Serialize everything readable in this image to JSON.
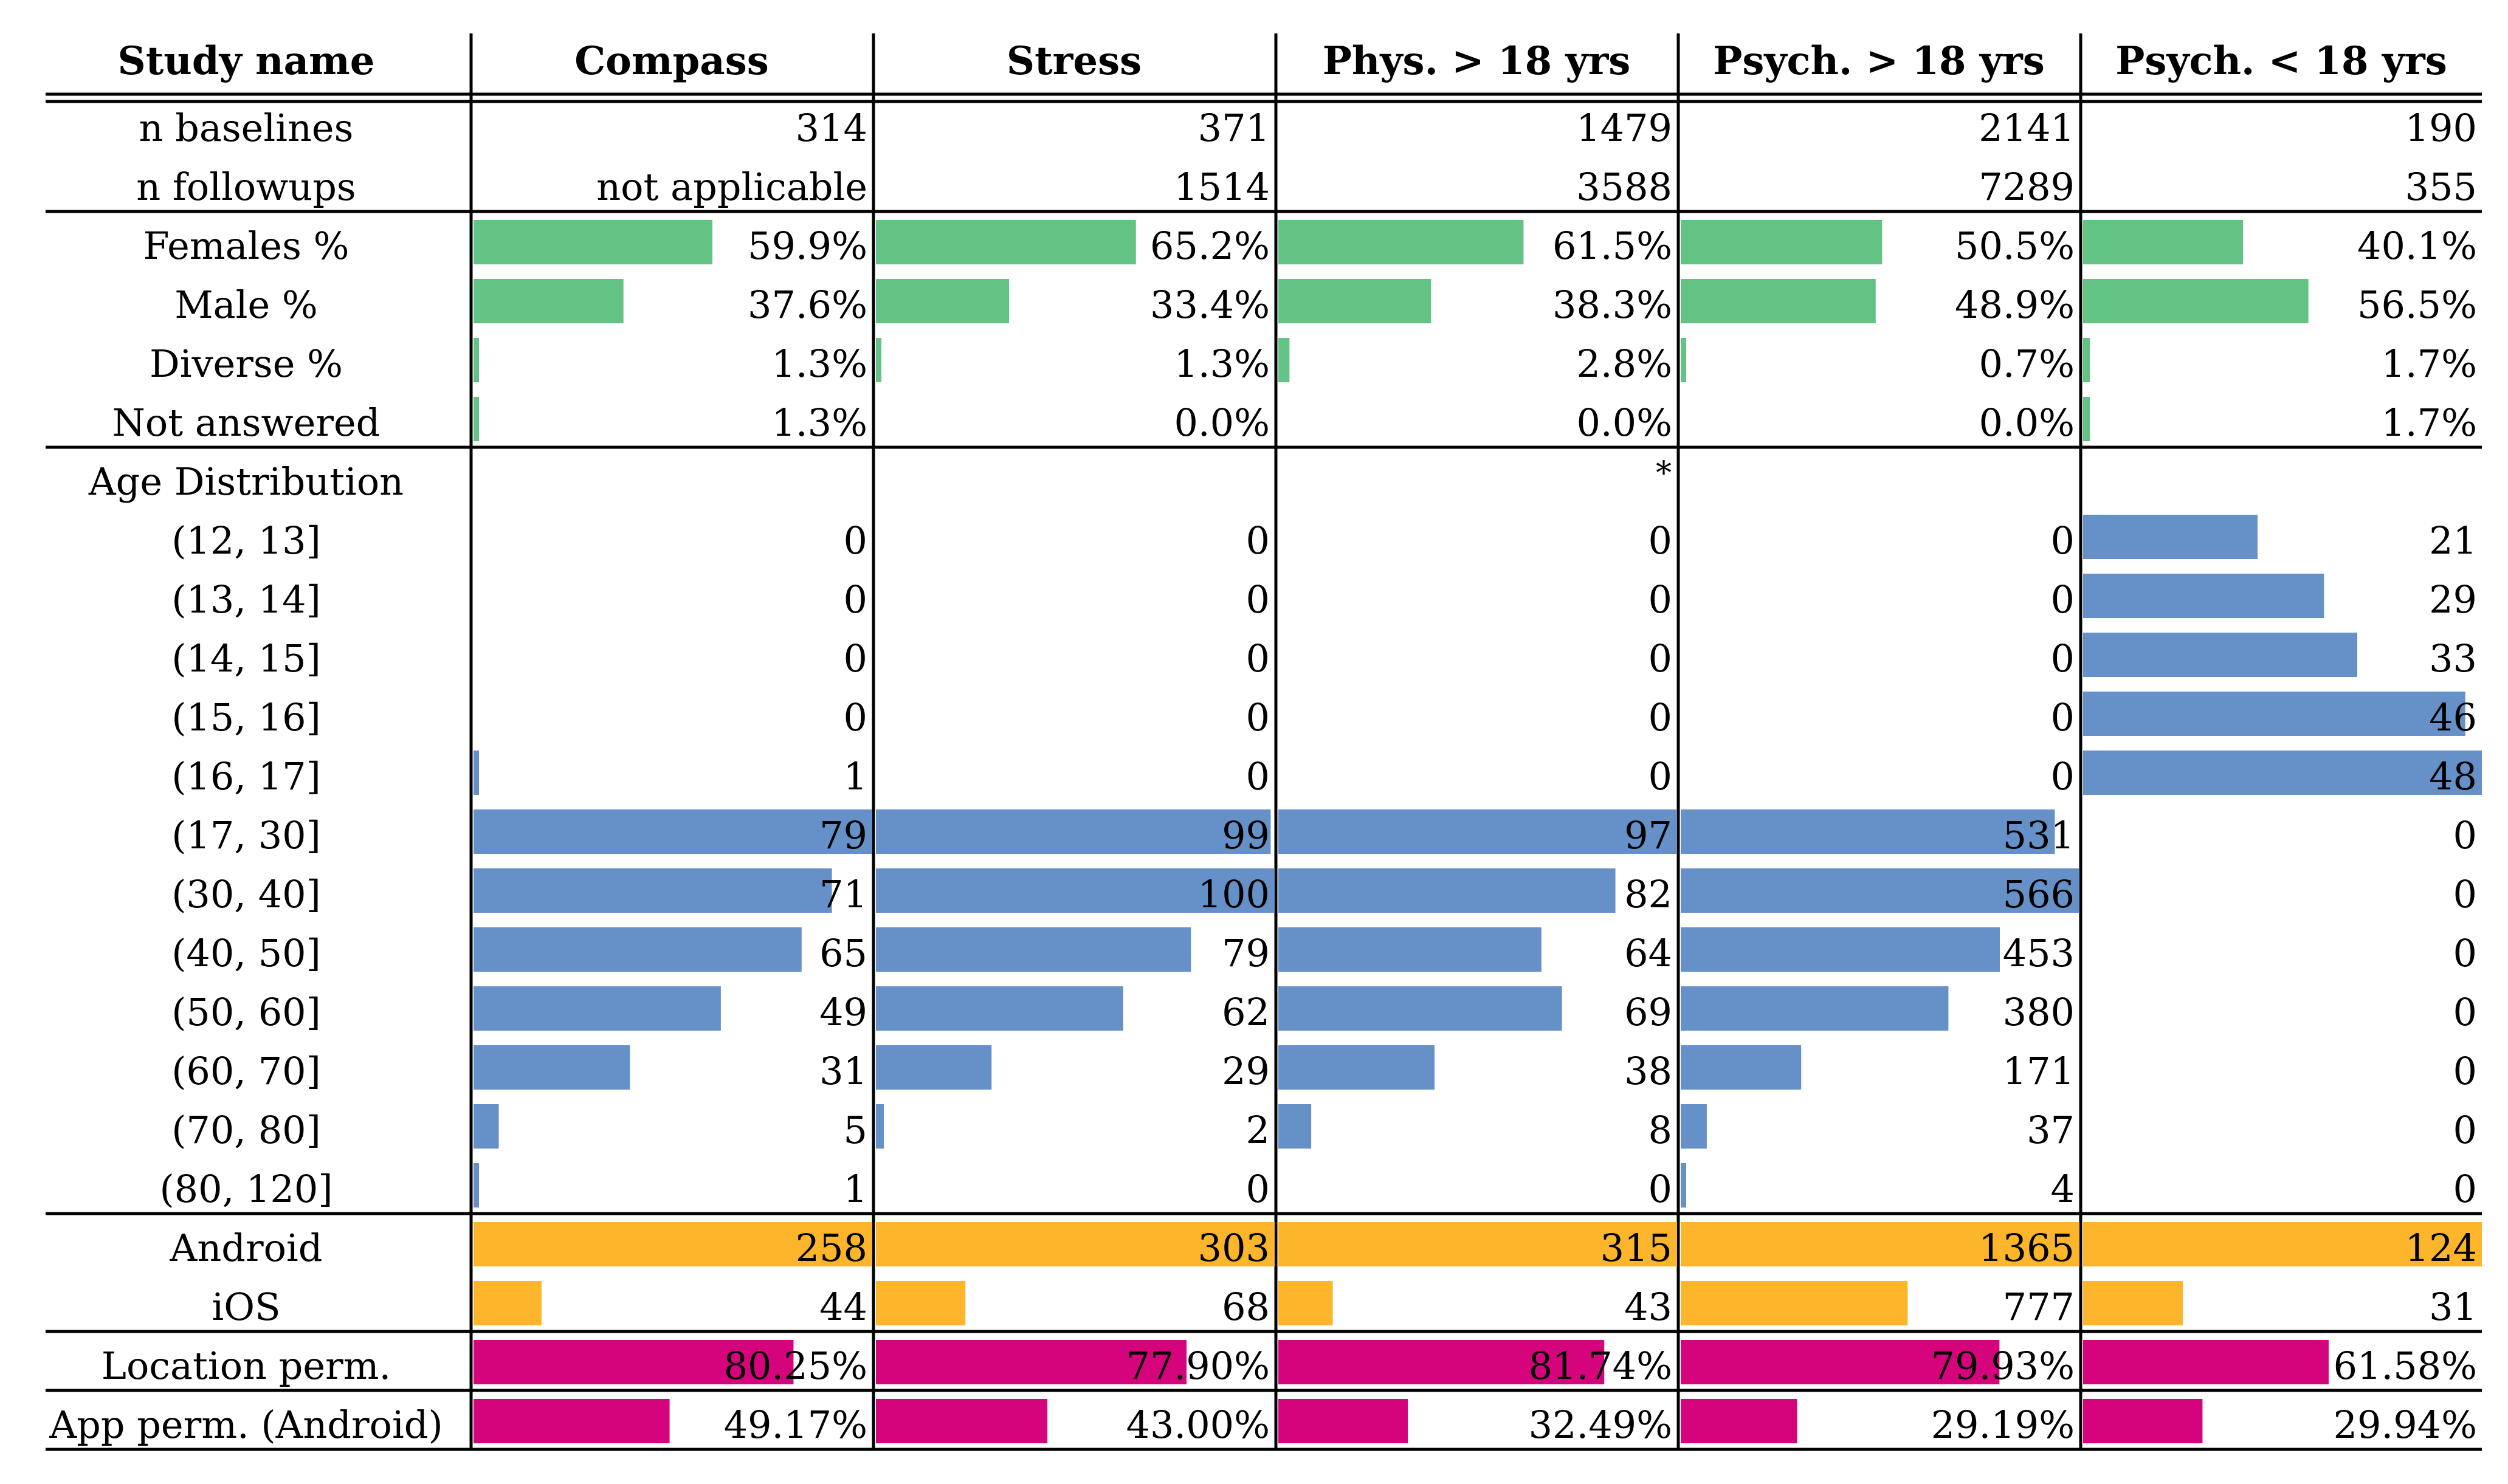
{
  "chart_data": {
    "type": "table",
    "title": "",
    "columns": [
      "Compass",
      "Stress",
      "Phys. > 18 yrs",
      "Psych. > 18 yrs",
      "Psych. < 18 yrs"
    ],
    "row_header": "Study name",
    "colors": {
      "gender": "#62c385",
      "age": "#6590c8",
      "os": "#fdb52b",
      "permissions": "#d5047d"
    },
    "sections": [
      {
        "name": "counts",
        "bars": false,
        "rows": [
          {
            "label": "n baselines",
            "values": [
              "314",
              "371",
              "1479",
              "2141",
              "190"
            ]
          },
          {
            "label": "n followups",
            "values": [
              "not applicable",
              "1514",
              "3588",
              "7289",
              "355"
            ]
          }
        ]
      },
      {
        "name": "gender",
        "bars": true,
        "color_key": "gender",
        "bar_max": 100,
        "rows": [
          {
            "label": "Females %",
            "values": [
              59.9,
              65.2,
              61.5,
              50.5,
              40.1
            ],
            "display": [
              "59.9%",
              "65.2%",
              "61.5%",
              "50.5%",
              "40.1%"
            ]
          },
          {
            "label": "Male %",
            "values": [
              37.6,
              33.4,
              38.3,
              48.9,
              56.5
            ],
            "display": [
              "37.6%",
              "33.4%",
              "38.3%",
              "48.9%",
              "56.5%"
            ]
          },
          {
            "label": "Diverse %",
            "values": [
              1.3,
              1.3,
              2.8,
              0.7,
              1.7
            ],
            "display": [
              "1.3%",
              "1.3%",
              "2.8%",
              "0.7%",
              "1.7%"
            ]
          },
          {
            "label": "Not answered",
            "values": [
              1.3,
              0.0,
              0.0,
              0.0,
              1.7
            ],
            "display": [
              "1.3%",
              "0.0%",
              "0.0%",
              "0.0%",
              "1.7%"
            ]
          }
        ]
      },
      {
        "name": "age",
        "bars": true,
        "color_key": "age",
        "bar_max": "column",
        "header_row": {
          "label": "Age Distribution",
          "notes": [
            "",
            "",
            "*",
            "",
            ""
          ]
        },
        "rows": [
          {
            "label": "(12, 13]",
            "values": [
              0,
              0,
              0,
              0,
              21
            ]
          },
          {
            "label": "(13, 14]",
            "values": [
              0,
              0,
              0,
              0,
              29
            ]
          },
          {
            "label": "(14, 15]",
            "values": [
              0,
              0,
              0,
              0,
              33
            ]
          },
          {
            "label": "(15, 16]",
            "values": [
              0,
              0,
              0,
              0,
              46
            ]
          },
          {
            "label": "(16, 17]",
            "values": [
              1,
              0,
              0,
              0,
              48
            ]
          },
          {
            "label": "(17, 30]",
            "values": [
              79,
              99,
              97,
              531,
              0
            ]
          },
          {
            "label": "(30, 40]",
            "values": [
              71,
              100,
              82,
              566,
              0
            ]
          },
          {
            "label": "(40, 50]",
            "values": [
              65,
              79,
              64,
              453,
              0
            ]
          },
          {
            "label": "(50, 60]",
            "values": [
              49,
              62,
              69,
              380,
              0
            ]
          },
          {
            "label": "(60, 70]",
            "values": [
              31,
              29,
              38,
              171,
              0
            ]
          },
          {
            "label": "(70, 80]",
            "values": [
              5,
              2,
              8,
              37,
              0
            ]
          },
          {
            "label": "(80, 120]",
            "values": [
              1,
              0,
              0,
              4,
              0
            ]
          }
        ]
      },
      {
        "name": "os",
        "bars": true,
        "color_key": "os",
        "bar_max": "column",
        "rows": [
          {
            "label": "Android",
            "values": [
              258,
              303,
              315,
              1365,
              124
            ]
          },
          {
            "label": "iOS",
            "values": [
              44,
              68,
              43,
              777,
              31
            ]
          }
        ]
      },
      {
        "name": "location",
        "bars": true,
        "color_key": "permissions",
        "bar_max": 100,
        "rows": [
          {
            "label": "Location perm.",
            "values": [
              80.25,
              77.9,
              81.74,
              79.93,
              61.58
            ],
            "display": [
              "80.25%",
              "77.90%",
              "81.74%",
              "79.93%",
              "61.58%"
            ]
          }
        ]
      },
      {
        "name": "app",
        "bars": true,
        "color_key": "permissions",
        "bar_max": 100,
        "rows": [
          {
            "label": "App perm. (Android)",
            "values": [
              49.17,
              43.0,
              32.49,
              29.19,
              29.94
            ],
            "display": [
              "49.17%",
              "43.00%",
              "32.49%",
              "29.19%",
              "29.94%"
            ]
          }
        ]
      }
    ]
  }
}
